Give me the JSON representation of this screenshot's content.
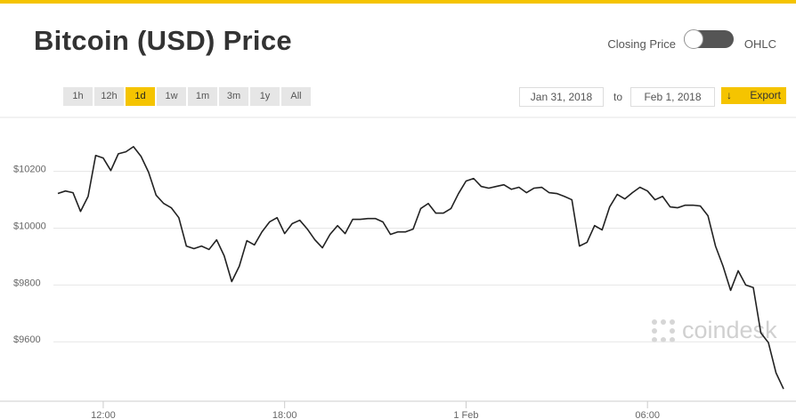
{
  "header": {
    "title": "Bitcoin (USD) Price"
  },
  "toggle": {
    "left_label": "Closing Price",
    "right_label": "OHLC"
  },
  "range_buttons": [
    "1h",
    "12h",
    "1d",
    "1w",
    "1m",
    "3m",
    "1y",
    "All"
  ],
  "date_range": {
    "from": "Jan 31, 2018",
    "separator": "to",
    "to": "Feb 1, 2018",
    "export": "Export"
  },
  "watermark": "coindesk",
  "chart_data": {
    "type": "line",
    "x": [
      10.5,
      10.75,
      11,
      11.25,
      11.5,
      11.75,
      12,
      12.25,
      12.5,
      12.75,
      13,
      13.25,
      13.5,
      13.75,
      14,
      14.25,
      14.5,
      14.75,
      15,
      15.25,
      15.5,
      15.75,
      16,
      16.25,
      16.5,
      16.75,
      17,
      17.25,
      17.5,
      17.75,
      18,
      18.25,
      18.5,
      18.75,
      19,
      19.25,
      19.5,
      19.75,
      20,
      20.25,
      20.5,
      20.75,
      21,
      21.25,
      21.5,
      21.75,
      22,
      22.25,
      22.5,
      22.75,
      23,
      23.25,
      23.5,
      23.75,
      24,
      24.25,
      24.5,
      24.75,
      25,
      25.25,
      25.5,
      25.75,
      26,
      26.25,
      26.5,
      26.75,
      27,
      27.25,
      27.5,
      27.75,
      28,
      28.25,
      28.5,
      28.75,
      29,
      29.25,
      29.5,
      29.75,
      30,
      30.25,
      30.5,
      30.75,
      31,
      31.25,
      31.5,
      31.75,
      32,
      32.25,
      32.5,
      32.75,
      33,
      33.25,
      33.5,
      33.75,
      34,
      34.25,
      34.5
    ],
    "series": [
      {
        "color": "#222222",
        "values": [
          10122,
          10131,
          10125,
          10059,
          10112,
          10256,
          10247,
          10203,
          10262,
          10269,
          10287,
          10253,
          10197,
          10116,
          10087,
          10072,
          10037,
          9937,
          9928,
          9937,
          9925,
          9959,
          9903,
          9812,
          9866,
          9956,
          9941,
          9987,
          10022,
          10037,
          9981,
          10016,
          10028,
          9997,
          9959,
          9931,
          9978,
          10009,
          9981,
          10031,
          10031,
          10034,
          10034,
          10022,
          9978,
          9987,
          9987,
          9997,
          10069,
          10087,
          10053,
          10053,
          10069,
          10122,
          10166,
          10175,
          10147,
          10141,
          10147,
          10153,
          10137,
          10144,
          10125,
          10141,
          10144,
          10125,
          10122,
          10112,
          10100,
          9937,
          9950,
          10009,
          9994,
          10075,
          10119,
          10103,
          10125,
          10144,
          10131,
          10100,
          10112,
          10075,
          10072,
          10081,
          10081,
          10078,
          10044,
          9937,
          9866,
          9781,
          9850,
          9800,
          9791,
          9631,
          9597,
          9491,
          9434
        ]
      }
    ],
    "xlim": [
      10.5,
      34.5
    ],
    "xticks": [
      {
        "value": 12,
        "label": "12:00"
      },
      {
        "value": 18,
        "label": "18:00"
      },
      {
        "value": 24,
        "label": "1 Feb"
      },
      {
        "value": 30,
        "label": "06:00"
      }
    ],
    "ylim": [
      9350,
      10390
    ],
    "yticks": [
      {
        "value": 9600,
        "label": "$9600"
      },
      {
        "value": 9800,
        "label": "$9800"
      },
      {
        "value": 10000,
        "label": "$10000"
      },
      {
        "value": 10200,
        "label": "$10200"
      }
    ],
    "grid": true
  }
}
